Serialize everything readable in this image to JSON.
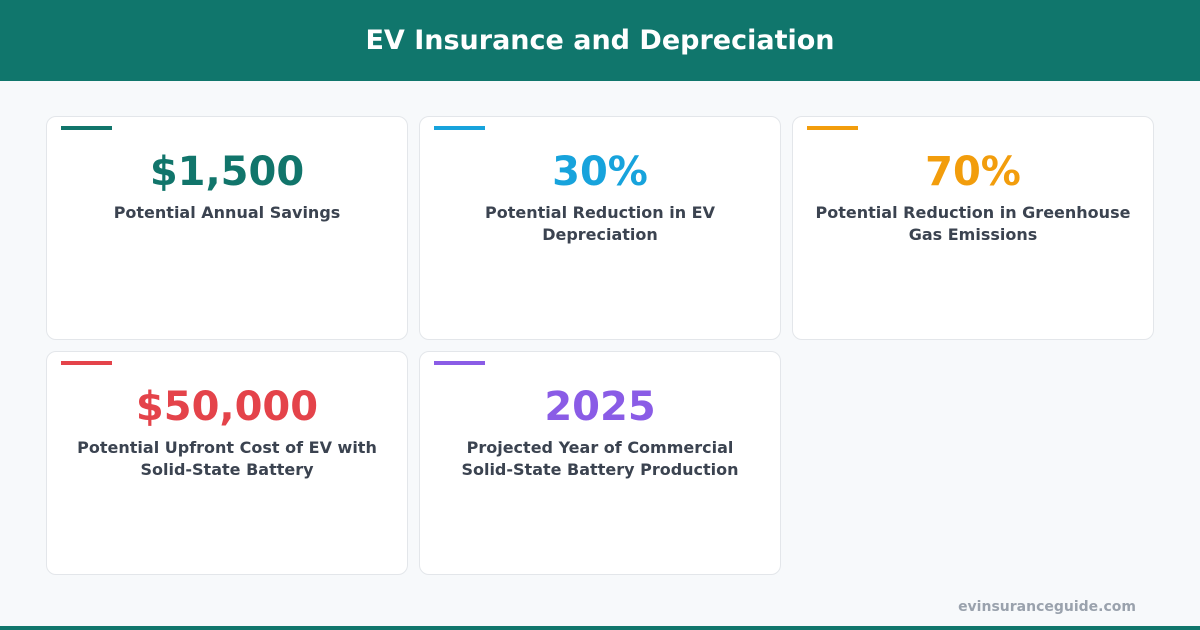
{
  "header": {
    "title": "EV Insurance and Depreciation"
  },
  "cards": [
    {
      "value": "$1,500",
      "label": "Potential Annual Savings",
      "color": "#11756b"
    },
    {
      "value": "30%",
      "label": "Potential Reduction in EV Depreciation",
      "color": "#17a3dc"
    },
    {
      "value": "70%",
      "label": "Potential Reduction in Greenhouse Gas Emissions",
      "color": "#f29d0c"
    },
    {
      "value": "$50,000",
      "label": "Potential Upfront Cost of EV with Solid-State Battery",
      "color": "#e4434a"
    },
    {
      "value": "2025",
      "label": "Projected Year of Commercial Solid-State Battery Production",
      "color": "#8a5ce6"
    }
  ],
  "footer": {
    "source": "evinsuranceguide.com"
  }
}
